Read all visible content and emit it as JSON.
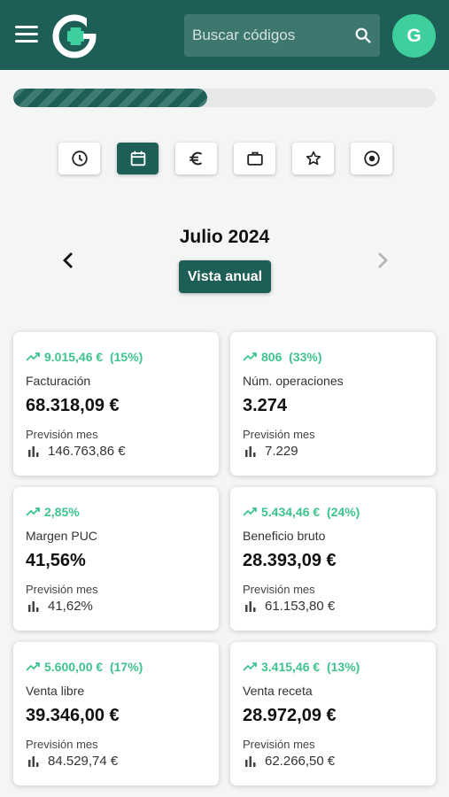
{
  "header": {
    "search_placeholder": "Buscar códigos",
    "avatar_initial": "G",
    "brand_color": "#1d5f57",
    "accent_color": "#3ecf9c"
  },
  "progress": {
    "fraction": 0.46
  },
  "tabs": [
    {
      "icon": "clock-icon",
      "active": false
    },
    {
      "icon": "calendar-icon",
      "active": true
    },
    {
      "icon": "euro-icon",
      "active": false
    },
    {
      "icon": "briefcase-icon",
      "active": false
    },
    {
      "icon": "star-icon",
      "active": false
    },
    {
      "icon": "target-icon",
      "active": false
    }
  ],
  "period": {
    "title": "Julio 2024",
    "year_view_label": "Vista anual"
  },
  "cards": [
    {
      "delta": "9.015,46 €",
      "delta_pct": "(15%)",
      "label": "Facturación",
      "value": "68.318,09 €",
      "forecast_label": "Previsión mes",
      "forecast_value": "146.763,86 €"
    },
    {
      "delta": "806",
      "delta_pct": "(33%)",
      "label": "Núm. operaciones",
      "value": "3.274",
      "forecast_label": "Previsión mes",
      "forecast_value": "7.229"
    },
    {
      "delta": "2,85%",
      "delta_pct": "",
      "label": "Margen PUC",
      "value": "41,56%",
      "forecast_label": "Previsión mes",
      "forecast_value": "41,62%"
    },
    {
      "delta": "5.434,46 €",
      "delta_pct": "(24%)",
      "label": "Beneficio bruto",
      "value": "28.393,09 €",
      "forecast_label": "Previsión mes",
      "forecast_value": "61.153,80 €"
    },
    {
      "delta": "5.600,00 €",
      "delta_pct": "(17%)",
      "label": "Venta libre",
      "value": "39.346,00 €",
      "forecast_label": "Previsión mes",
      "forecast_value": "84.529,74 €"
    },
    {
      "delta": "3.415,46 €",
      "delta_pct": "(13%)",
      "label": "Venta receta",
      "value": "28.972,09 €",
      "forecast_label": "Previsión mes",
      "forecast_value": "62.266,50 €"
    }
  ]
}
